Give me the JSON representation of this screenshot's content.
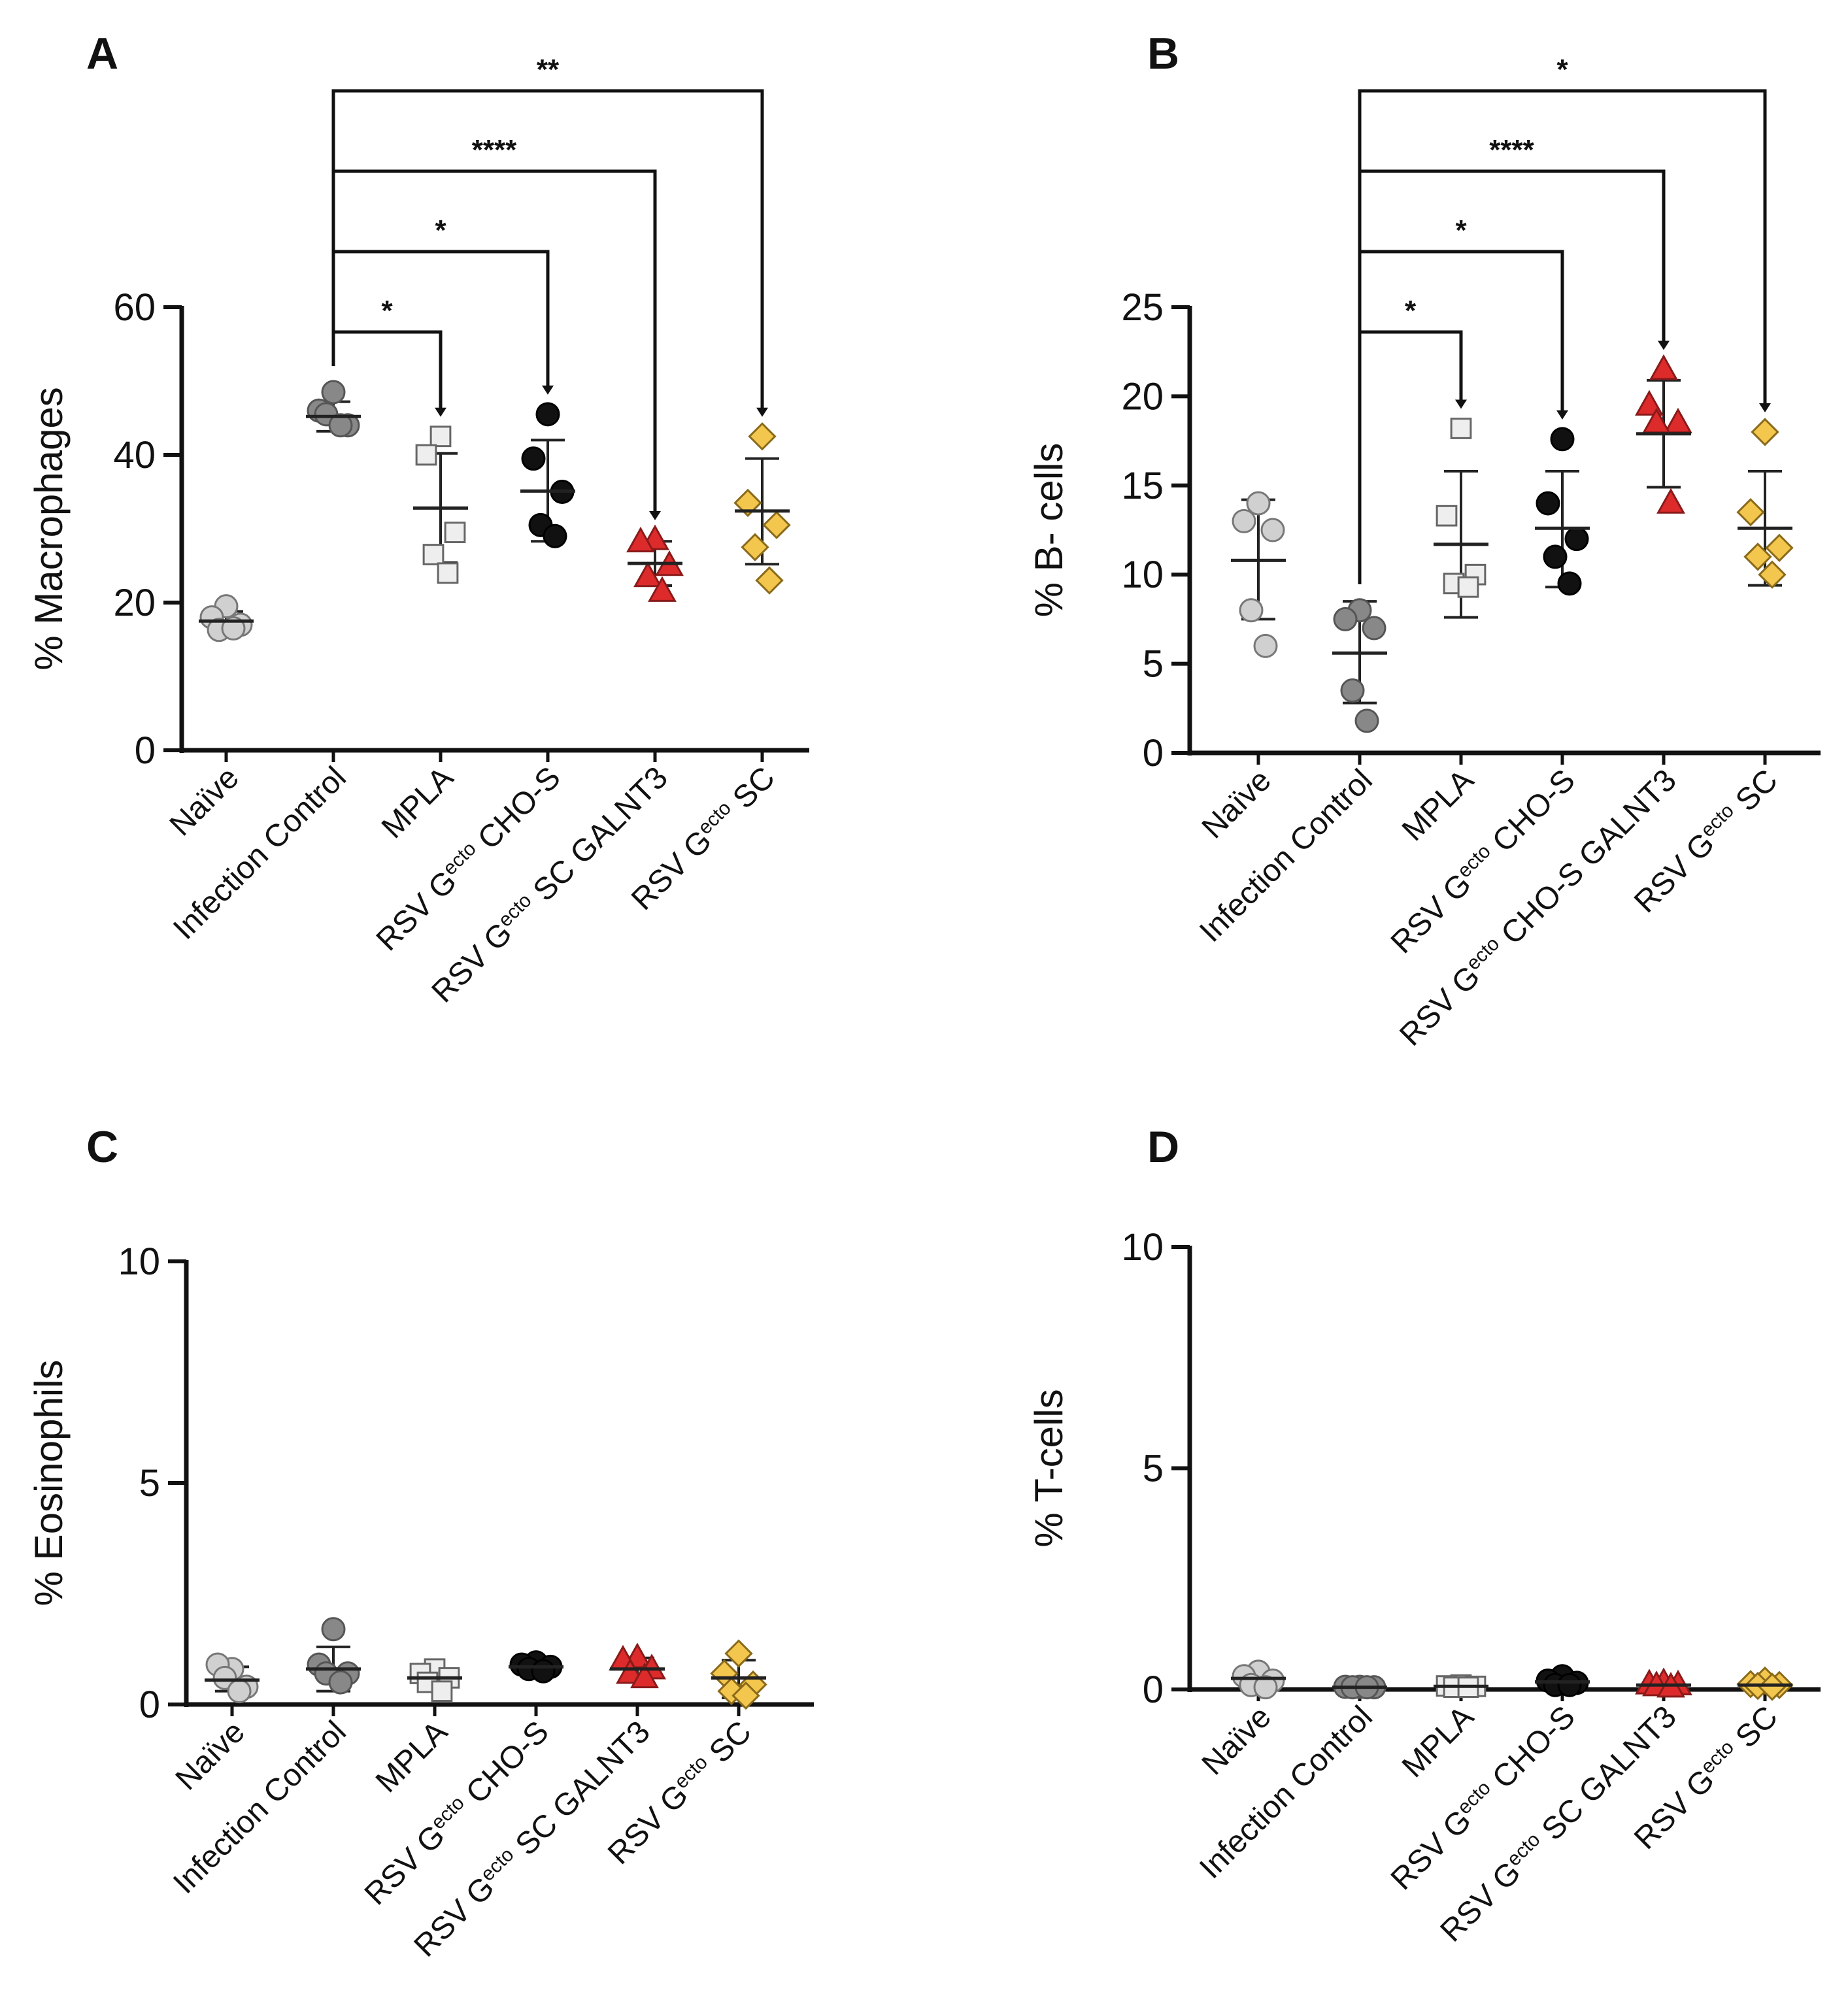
{
  "figure": {
    "subscript_word": "ecto"
  },
  "chart_data": [
    {
      "id": "A",
      "panel_label": "A",
      "type": "scatter",
      "ylabel": "% Macrophages",
      "ylim": [
        0,
        60
      ],
      "yticks": [
        0,
        20,
        40,
        60
      ],
      "groups": [
        {
          "label": "Naïve",
          "label_parts": [
            "Naïve"
          ],
          "marker": "circle",
          "fill": "#d0d0d0",
          "stroke": "#777777",
          "points": [
            19.5,
            18,
            17,
            16.3,
            16.5
          ],
          "mean": 17.5,
          "err_low": 16.4,
          "err_high": 18.8
        },
        {
          "label": "Infection Control",
          "label_parts": [
            "Infection Control"
          ],
          "marker": "circle",
          "fill": "#888888",
          "stroke": "#555555",
          "points": [
            48.5,
            46,
            44,
            45.5,
            44
          ],
          "mean": 45.2,
          "err_low": 43.2,
          "err_high": 47.2
        },
        {
          "label": "MPLA",
          "label_parts": [
            "MPLA"
          ],
          "marker": "square",
          "fill": "#eeeeee",
          "stroke": "#666666",
          "points": [
            42.5,
            40,
            29.5,
            26.5,
            24
          ],
          "mean": 32.8,
          "err_low": 25.4,
          "err_high": 40.2
        },
        {
          "label": "RSV Gecto CHO-S",
          "label_parts": [
            "RSV G",
            "ecto",
            " CHO-S"
          ],
          "marker": "circle",
          "fill": "#111111",
          "stroke": "#000000",
          "points": [
            45.5,
            39.5,
            35,
            30.5,
            29
          ],
          "mean": 35.1,
          "err_low": 28.3,
          "err_high": 42
        },
        {
          "label": "RSV Gecto SC GALNT3",
          "label_parts": [
            "RSV G",
            "ecto",
            " SC GALNT3"
          ],
          "marker": "triangle",
          "fill": "#dd2b2b",
          "stroke": "#8a1a1a",
          "points": [
            28.5,
            28.2,
            25,
            23.5,
            21.5
          ],
          "mean": 25.3,
          "err_low": 22.3,
          "err_high": 28.3
        },
        {
          "label": "RSV Gecto SC",
          "label_parts": [
            "RSV G",
            "ecto",
            " SC"
          ],
          "marker": "diamond",
          "fill": "#f3c64e",
          "stroke": "#8a6a1a",
          "points": [
            42.5,
            33.5,
            30.5,
            27.5,
            23
          ],
          "mean": 32.4,
          "err_low": 25.2,
          "err_high": 39.5
        }
      ],
      "comparisons": [
        {
          "from": 1,
          "to": 2,
          "stars": "*"
        },
        {
          "from": 1,
          "to": 3,
          "stars": "*"
        },
        {
          "from": 1,
          "to": 4,
          "stars": "****"
        },
        {
          "from": 1,
          "to": 5,
          "stars": "**"
        }
      ]
    },
    {
      "id": "B",
      "panel_label": "B",
      "type": "scatter",
      "ylabel": "% B- cells",
      "ylim": [
        0,
        25
      ],
      "yticks": [
        0,
        5,
        10,
        15,
        20,
        25
      ],
      "groups": [
        {
          "label": "Naïve",
          "label_parts": [
            "Naïve"
          ],
          "marker": "circle",
          "fill": "#d0d0d0",
          "stroke": "#777777",
          "points": [
            14,
            13,
            12.5,
            8,
            6
          ],
          "mean": 10.8,
          "err_low": 7.5,
          "err_high": 14.2
        },
        {
          "label": "Infection Control",
          "label_parts": [
            "Infection Control"
          ],
          "marker": "circle",
          "fill": "#888888",
          "stroke": "#555555",
          "points": [
            8,
            7.5,
            7,
            3.5,
            1.8
          ],
          "mean": 5.6,
          "err_low": 2.8,
          "err_high": 8.5
        },
        {
          "label": "MPLA",
          "label_parts": [
            "MPLA"
          ],
          "marker": "square",
          "fill": "#eeeeee",
          "stroke": "#666666",
          "points": [
            18.2,
            13.3,
            10,
            9.5,
            9.3
          ],
          "mean": 11.7,
          "err_low": 7.6,
          "err_high": 15.8
        },
        {
          "label": "RSV Gecto CHO-S",
          "label_parts": [
            "RSV G",
            "ecto",
            " CHO-S"
          ],
          "marker": "circle",
          "fill": "#111111",
          "stroke": "#000000",
          "points": [
            17.6,
            14,
            12,
            11,
            9.5
          ],
          "mean": 12.6,
          "err_low": 9.3,
          "err_high": 15.8
        },
        {
          "label": "RSV Gecto CHO-S GALNT3",
          "label_parts": [
            "RSV G",
            "ecto",
            " CHO-S GALNT3"
          ],
          "marker": "triangle",
          "fill": "#dd2b2b",
          "stroke": "#8a1a1a",
          "points": [
            21.5,
            19.5,
            18.5,
            18.5,
            14
          ],
          "mean": 17.9,
          "err_low": 14.9,
          "err_high": 20.9
        },
        {
          "label": "RSV Gecto SC",
          "label_parts": [
            "RSV G",
            "ecto",
            " SC"
          ],
          "marker": "diamond",
          "fill": "#f3c64e",
          "stroke": "#8a6a1a",
          "points": [
            18,
            13.5,
            11.5,
            11,
            10
          ],
          "mean": 12.6,
          "err_low": 9.4,
          "err_high": 15.8
        }
      ],
      "comparisons": [
        {
          "from": 1,
          "to": 2,
          "stars": "*"
        },
        {
          "from": 1,
          "to": 3,
          "stars": "*"
        },
        {
          "from": 1,
          "to": 4,
          "stars": "****"
        },
        {
          "from": 1,
          "to": 5,
          "stars": "*"
        }
      ]
    },
    {
      "id": "C",
      "panel_label": "C",
      "type": "scatter",
      "ylabel": "% Eosinophils",
      "ylim": [
        0,
        10
      ],
      "yticks": [
        0,
        5,
        10
      ],
      "groups": [
        {
          "label": "Naïve",
          "label_parts": [
            "Naïve"
          ],
          "marker": "circle",
          "fill": "#d0d0d0",
          "stroke": "#777777",
          "points": [
            0.8,
            0.9,
            0.4,
            0.6,
            0.3
          ],
          "mean": 0.55,
          "err_low": 0.3,
          "err_high": 0.85
        },
        {
          "label": "Infection Control",
          "label_parts": [
            "Infection Control"
          ],
          "marker": "circle",
          "fill": "#888888",
          "stroke": "#555555",
          "points": [
            1.7,
            0.9,
            0.7,
            0.7,
            0.5
          ],
          "mean": 0.8,
          "err_low": 0.3,
          "err_high": 1.3
        },
        {
          "label": "MPLA",
          "label_parts": [
            "MPLA"
          ],
          "marker": "square",
          "fill": "#eeeeee",
          "stroke": "#666666",
          "points": [
            0.8,
            0.7,
            0.6,
            0.5,
            0.3
          ],
          "mean": 0.6,
          "err_low": 0.4,
          "err_high": 0.75
        },
        {
          "label": "RSV Gecto CHO-S",
          "label_parts": [
            "RSV G",
            "ecto",
            " CHO-S"
          ],
          "marker": "circle",
          "fill": "#111111",
          "stroke": "#000000",
          "points": [
            0.95,
            0.9,
            0.85,
            0.8,
            0.75
          ],
          "mean": 0.85,
          "err_low": 0.8,
          "err_high": 0.95
        },
        {
          "label": "RSV Gecto SC GALNT3",
          "label_parts": [
            "RSV G",
            "ecto",
            " SC GALNT3"
          ],
          "marker": "triangle",
          "fill": "#dd2b2b",
          "stroke": "#8a1a1a",
          "points": [
            1.05,
            1.0,
            0.8,
            0.7,
            0.6
          ],
          "mean": 0.8,
          "err_low": 0.6,
          "err_high": 1.05
        },
        {
          "label": "RSV Gecto SC",
          "label_parts": [
            "RSV G",
            "ecto",
            " SC"
          ],
          "marker": "diamond",
          "fill": "#f3c64e",
          "stroke": "#8a6a1a",
          "points": [
            1.15,
            0.7,
            0.45,
            0.3,
            0.2
          ],
          "mean": 0.6,
          "err_low": 0.15,
          "err_high": 1.0
        }
      ],
      "comparisons": []
    },
    {
      "id": "D",
      "panel_label": "D",
      "type": "scatter",
      "ylabel": "% T-cells",
      "ylim": [
        0,
        10
      ],
      "yticks": [
        0,
        5,
        10
      ],
      "groups": [
        {
          "label": "Naïve",
          "label_parts": [
            "Naïve"
          ],
          "marker": "circle",
          "fill": "#d0d0d0",
          "stroke": "#777777",
          "points": [
            0.4,
            0.3,
            0.2,
            0.1,
            0.05
          ],
          "mean": 0.25,
          "err_low": 0.05,
          "err_high": 0.35
        },
        {
          "label": "Infection Control",
          "label_parts": [
            "Infection Control"
          ],
          "marker": "circle",
          "fill": "#888888",
          "stroke": "#555555",
          "points": [
            0.06,
            0.06,
            0.05,
            0.05,
            0.05
          ],
          "mean": 0.05,
          "err_low": 0.03,
          "err_high": 0.07
        },
        {
          "label": "MPLA",
          "label_parts": [
            "MPLA"
          ],
          "marker": "square",
          "fill": "#eeeeee",
          "stroke": "#666666",
          "points": [
            0.1,
            0.08,
            0.07,
            0.05,
            0.05
          ],
          "mean": 0.07,
          "err_low": 0.04,
          "err_high": 0.1
        },
        {
          "label": "RSV Gecto CHO-S",
          "label_parts": [
            "RSV G",
            "ecto",
            " CHO-S"
          ],
          "marker": "circle",
          "fill": "#111111",
          "stroke": "#000000",
          "points": [
            0.3,
            0.2,
            0.15,
            0.1,
            0.1
          ],
          "mean": 0.17,
          "err_low": 0.08,
          "err_high": 0.26
        },
        {
          "label": "RSV Gecto SC GALNT3",
          "label_parts": [
            "RSV G",
            "ecto",
            " SC GALNT3"
          ],
          "marker": "triangle",
          "fill": "#dd2b2b",
          "stroke": "#8a1a1a",
          "points": [
            0.15,
            0.12,
            0.1,
            0.08,
            0.05
          ],
          "mean": 0.1,
          "err_low": 0.05,
          "err_high": 0.15
        },
        {
          "label": "RSV Gecto SC",
          "label_parts": [
            "RSV G",
            "ecto",
            " SC"
          ],
          "marker": "diamond",
          "fill": "#f3c64e",
          "stroke": "#8a6a1a",
          "points": [
            0.2,
            0.12,
            0.1,
            0.08,
            0.06
          ],
          "mean": 0.1,
          "err_low": 0.05,
          "err_high": 0.15
        }
      ],
      "comparisons": []
    }
  ]
}
